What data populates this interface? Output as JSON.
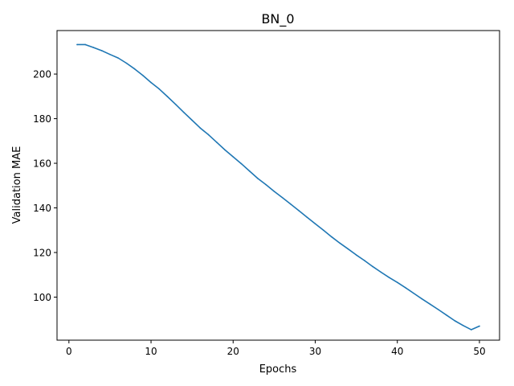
{
  "chart_data": {
    "type": "line",
    "title": "BN_0",
    "xlabel": "Epochs",
    "ylabel": "Validation MAE",
    "xlim": [
      -1.45,
      52.45
    ],
    "ylim": [
      80.7,
      219.5
    ],
    "xticks": [
      0,
      10,
      20,
      30,
      40,
      50
    ],
    "xtick_labels": [
      "0",
      "10",
      "20",
      "30",
      "40",
      "50"
    ],
    "yticks": [
      100,
      120,
      140,
      160,
      180,
      200
    ],
    "ytick_labels": [
      "100",
      "120",
      "140",
      "160",
      "180",
      "200"
    ],
    "grid": false,
    "line_color": "#1f77b4",
    "series": [
      {
        "x": [
          1,
          2,
          3,
          4,
          5,
          6,
          7,
          8,
          9,
          10,
          11,
          12,
          13,
          14,
          15,
          16,
          17,
          18,
          19,
          20,
          21,
          22,
          23,
          24,
          25,
          26,
          27,
          28,
          29,
          30,
          31,
          32,
          33,
          34,
          35,
          36,
          37,
          38,
          39,
          40,
          41,
          42,
          43,
          44,
          45,
          46,
          47,
          48,
          49,
          50
        ],
        "values": [
          213.2,
          213.2,
          211.9,
          210.5,
          208.8,
          207.2,
          204.9,
          202.3,
          199.4,
          196.2,
          193.3,
          189.9,
          186.4,
          182.8,
          179.3,
          175.8,
          172.8,
          169.4,
          166.0,
          162.9,
          159.8,
          156.5,
          153.2,
          150.4,
          147.4,
          144.6,
          141.7,
          138.8,
          135.8,
          132.9,
          130.0,
          127.0,
          124.2,
          121.6,
          118.9,
          116.4,
          113.7,
          111.2,
          108.8,
          106.6,
          104.2,
          101.7,
          99.2,
          96.8,
          94.4,
          91.9,
          89.4,
          87.3,
          85.4,
          87.0
        ]
      }
    ]
  }
}
